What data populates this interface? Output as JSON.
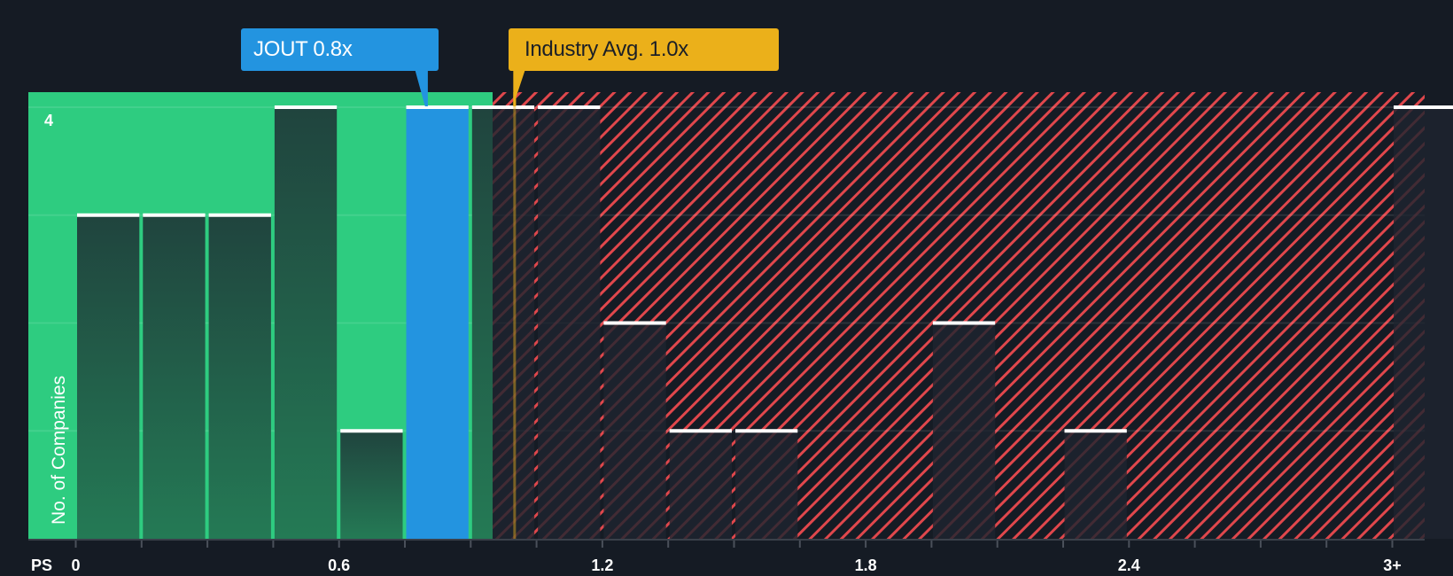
{
  "callouts": {
    "company": {
      "label": "JOUT 0.8x",
      "value": 0.8,
      "color": "#2394e0"
    },
    "industry": {
      "label": "Industry Avg. 1.0x",
      "value": 1.0,
      "color": "#ebb01a"
    }
  },
  "axis": {
    "x_prefix": "PS",
    "y_label": "No. of Companies",
    "y_top_tick": "4",
    "x_ticks": [
      "0",
      "0.6",
      "1.2",
      "1.8",
      "2.4",
      "3+"
    ]
  },
  "colors": {
    "background": "#151b24",
    "undervalued_zone": "#2ecc80",
    "overvalued_hatch": "#e0474c",
    "bar_dark_green": "#21463f",
    "highlight_bar": "#2394e0",
    "bar_cap": "#ffffff"
  },
  "chart_data": {
    "type": "bar",
    "title": "",
    "xlabel": "PS",
    "ylabel": "No. of Companies",
    "ylim": [
      0,
      4
    ],
    "bin_width": 0.15,
    "categories": [
      "0.00-0.15",
      "0.15-0.30",
      "0.30-0.45",
      "0.45-0.60",
      "0.60-0.75",
      "0.75-0.90",
      "0.90-1.05",
      "1.05-1.20",
      "1.20-1.35",
      "1.35-1.50",
      "1.50-1.65",
      "1.65-1.80",
      "1.80-1.95",
      "1.95-2.10",
      "2.10-2.25",
      "2.25-2.40",
      "2.40-2.55",
      "2.55-2.70",
      "2.70-2.85",
      "2.85-3.00",
      "3+"
    ],
    "values": [
      3,
      3,
      3,
      4,
      1,
      4,
      4,
      4,
      2,
      1,
      1,
      0,
      0,
      2,
      0,
      1,
      0,
      0,
      0,
      0,
      4
    ],
    "highlight": {
      "label": "JOUT",
      "value": 0.8,
      "bin_index": 5
    },
    "reference_line": {
      "label": "Industry Avg.",
      "value": 1.0
    },
    "x_tick_labels": [
      "0",
      "0.6",
      "1.2",
      "1.8",
      "2.4",
      "3+"
    ],
    "grid": true,
    "zones": [
      {
        "name": "below-average",
        "from": 0,
        "to": 0.95,
        "color": "#2ecc80"
      },
      {
        "name": "above-average",
        "from": 0.95,
        "to": "3+",
        "color": "#e0474c",
        "pattern": "diagonal-hatch"
      }
    ]
  }
}
